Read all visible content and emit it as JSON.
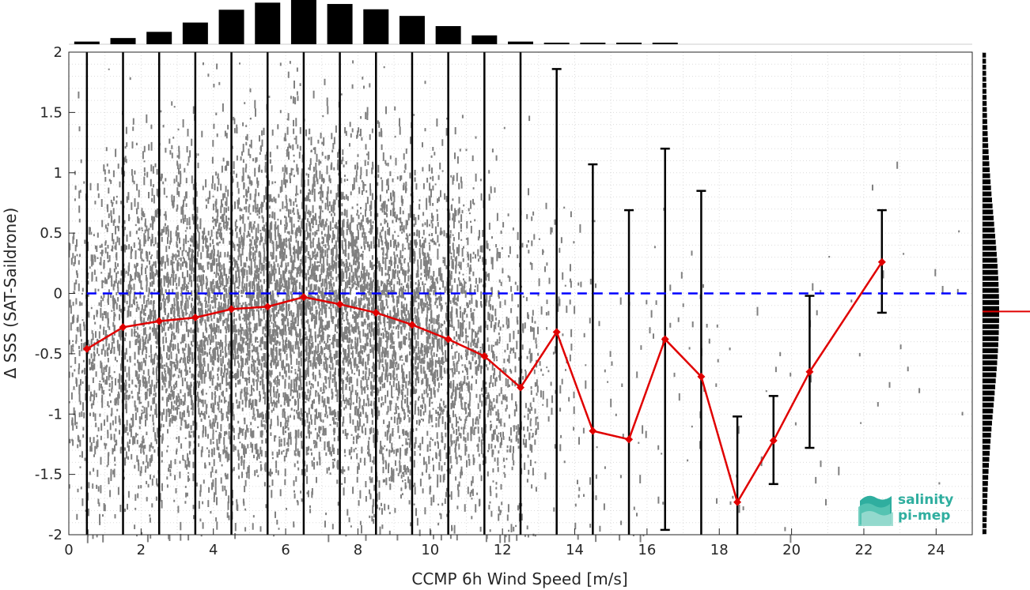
{
  "chart_data": {
    "type": "scatter",
    "xlabel": "CCMP 6h Wind Speed [m/s]",
    "ylabel": "Δ SSS (SAT-Saildrone)",
    "xlim": [
      0,
      25
    ],
    "ylim": [
      -2,
      2
    ],
    "x_ticks": [
      0,
      2,
      4,
      6,
      8,
      10,
      12,
      14,
      16,
      18,
      20,
      22,
      24
    ],
    "y_ticks": [
      -2,
      -1.5,
      -1,
      -0.5,
      0,
      0.5,
      1,
      1.5,
      2
    ],
    "grid": true,
    "reference_line": {
      "y": 0,
      "color": "#0000ff",
      "style": "dashed"
    },
    "binned_mean": {
      "color": "#e00000",
      "x": [
        0.5,
        1.5,
        2.5,
        3.5,
        4.5,
        5.5,
        6.5,
        7.5,
        8.5,
        9.5,
        10.5,
        11.5,
        12.5,
        13.5,
        14.5,
        15.5,
        16.5,
        17.5,
        18.5,
        19.5,
        20.5,
        22.5
      ],
      "y": [
        -0.46,
        -0.28,
        -0.23,
        -0.2,
        -0.13,
        -0.11,
        -0.03,
        -0.09,
        -0.16,
        -0.26,
        -0.38,
        -0.52,
        -0.78,
        -0.32,
        -1.14,
        -1.21,
        -0.38,
        -0.69,
        -1.73,
        -1.22,
        -0.65,
        0.26
      ],
      "err_low": [
        -2.0,
        -2.0,
        -2.0,
        -2.0,
        -2.0,
        -2.0,
        -2.0,
        -2.0,
        -2.0,
        -2.0,
        -2.0,
        -2.0,
        -2.0,
        -2.0,
        -2.0,
        -2.0,
        -1.96,
        -2.0,
        -2.0,
        -1.58,
        -1.28,
        -0.16
      ],
      "err_high": [
        2.0,
        2.0,
        2.0,
        2.0,
        2.0,
        2.0,
        2.0,
        2.0,
        2.0,
        2.0,
        2.0,
        2.0,
        2.0,
        1.86,
        1.07,
        0.69,
        1.2,
        0.85,
        -1.02,
        -0.85,
        -0.02,
        0.69
      ]
    },
    "scatter": {
      "color": "#808080",
      "density_by_bin": [
        0.35,
        0.55,
        0.7,
        0.8,
        0.88,
        0.95,
        1.0,
        0.95,
        0.88,
        0.78,
        0.65,
        0.45,
        0.25,
        0.08,
        0.04,
        0.03,
        0.02,
        0.02,
        0.01,
        0.01,
        0.01,
        0.005
      ],
      "y_spread": 0.75
    },
    "x_histogram": {
      "bins": [
        0.5,
        1.5,
        2.5,
        3.5,
        4.5,
        5.5,
        6.5,
        7.5,
        8.5,
        9.5,
        10.5,
        11.5,
        12.5,
        13.5,
        14.5,
        15.5,
        16.5
      ],
      "values": [
        0.06,
        0.14,
        0.28,
        0.49,
        0.78,
        0.94,
        1.0,
        0.91,
        0.79,
        0.64,
        0.41,
        0.2,
        0.06,
        0.03,
        0.015,
        0.01,
        0.005
      ]
    },
    "y_histogram": {
      "mean_marker": -0.15,
      "mean_color": "#e00000"
    }
  },
  "logo": {
    "line1": "salinity",
    "line2": "pi-mep"
  }
}
